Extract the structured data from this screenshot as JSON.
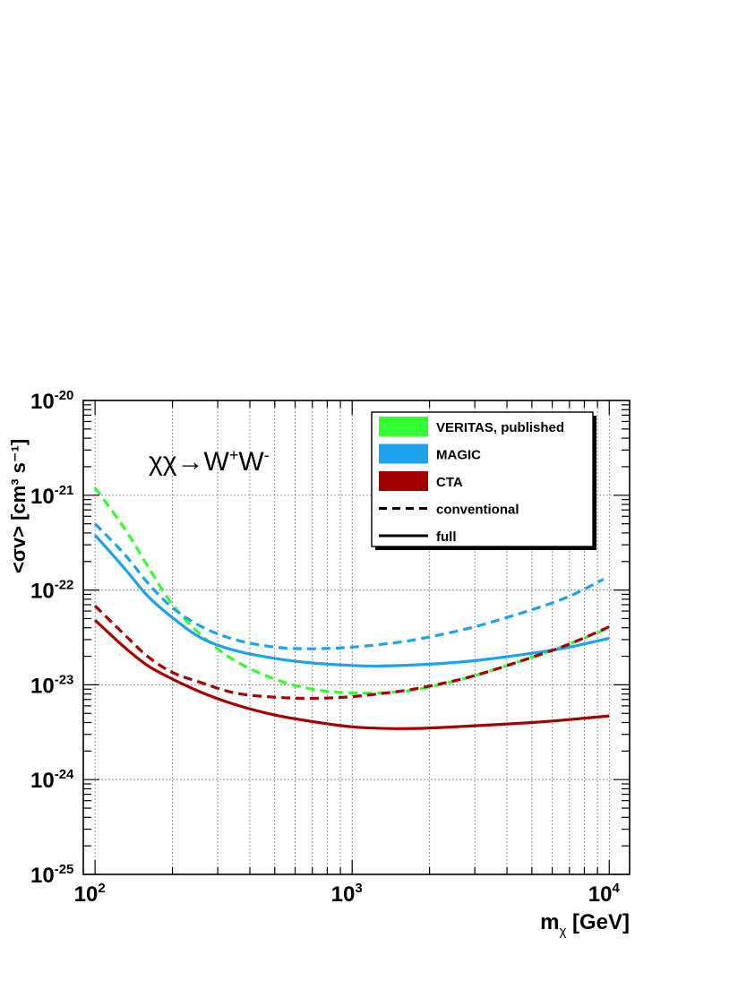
{
  "chart_data": {
    "type": "line",
    "title": "",
    "annotation": {
      "base": "χχ→W",
      "sup1": "+",
      "mid": "W",
      "sup2": "-"
    },
    "xlabel": {
      "base": "m",
      "sub": "χ",
      "rest": " [GeV]"
    },
    "ylabel": "<σv> [cm³ s⁻¹]",
    "x_scale": "log",
    "y_scale": "log",
    "xlim": [
      90,
      12000
    ],
    "ylim": [
      1e-25,
      1e-20
    ],
    "x_ticks": [
      {
        "value": 100,
        "base": "10",
        "exp": "2"
      },
      {
        "value": 1000,
        "base": "10",
        "exp": "3"
      },
      {
        "value": 10000,
        "base": "10",
        "exp": "4"
      }
    ],
    "y_ticks": [
      {
        "value": 1e-20,
        "base": "10",
        "exp": "-20"
      },
      {
        "value": 1e-21,
        "base": "10",
        "exp": "-21"
      },
      {
        "value": 1e-22,
        "base": "10",
        "exp": "-22"
      },
      {
        "value": 1e-23,
        "base": "10",
        "exp": "-23"
      },
      {
        "value": 1e-24,
        "base": "10",
        "exp": "-24"
      },
      {
        "value": 1e-25,
        "base": "10",
        "exp": "-25"
      }
    ],
    "grid": true,
    "legend_position": "top-right",
    "legend": [
      {
        "label": "VERITAS, published",
        "kind": "box",
        "color": "#33ff33"
      },
      {
        "label": "MAGIC",
        "kind": "box",
        "color": "#1ca3ec"
      },
      {
        "label": "CTA",
        "kind": "box",
        "color": "#a50000"
      },
      {
        "label": "conventional",
        "kind": "line-dashed",
        "color": "#000000"
      },
      {
        "label": "full",
        "kind": "line-solid",
        "color": "#000000"
      }
    ],
    "series": [
      {
        "name": "VERITAS, published",
        "color": "#33ff33",
        "style": "dashed",
        "x": [
          100,
          130,
          160,
          200,
          260,
          350,
          500,
          700,
          1000,
          1500,
          2000,
          3000,
          5000,
          7000,
          10000
        ],
        "y": [
          1.2e-21,
          4.5e-22,
          1.8e-22,
          7e-23,
          3.3e-23,
          1.8e-23,
          1.15e-23,
          9e-24,
          8.2e-24,
          8.4e-24,
          9.5e-24,
          1.25e-23,
          1.95e-23,
          2.7e-23,
          4e-23
        ]
      },
      {
        "name": "MAGIC",
        "color": "#1ca3ec",
        "style": "dashed",
        "x": [
          100,
          130,
          160,
          200,
          260,
          350,
          500,
          700,
          1000,
          1500,
          2000,
          3000,
          5000,
          7000,
          9500
        ],
        "y": [
          5e-22,
          2.4e-22,
          1.2e-22,
          6.5e-23,
          4.1e-23,
          3e-23,
          2.5e-23,
          2.4e-23,
          2.5e-23,
          2.8e-23,
          3.2e-23,
          4.1e-23,
          6.2e-23,
          8.6e-23,
          1.3e-22
        ]
      },
      {
        "name": "MAGIC",
        "color": "#1ca3ec",
        "style": "solid",
        "x": [
          100,
          130,
          160,
          200,
          260,
          350,
          500,
          700,
          1000,
          1300,
          2000,
          3000,
          5000,
          7000,
          10000
        ],
        "y": [
          3.8e-22,
          1.7e-22,
          8.7e-23,
          5.1e-23,
          3.1e-23,
          2.3e-23,
          1.9e-23,
          1.7e-23,
          1.6e-23,
          1.58e-23,
          1.65e-23,
          1.8e-23,
          2.15e-23,
          2.5e-23,
          3.1e-23
        ]
      },
      {
        "name": "CTA",
        "color": "#a50000",
        "style": "dashed",
        "x": [
          100,
          130,
          160,
          200,
          260,
          350,
          500,
          700,
          1000,
          1500,
          2000,
          3000,
          5000,
          7000,
          10000
        ],
        "y": [
          6.8e-23,
          3.4e-23,
          2e-23,
          1.35e-23,
          1.05e-23,
          8.2e-24,
          7.4e-24,
          7.2e-24,
          7.5e-24,
          8.5e-24,
          9.7e-24,
          1.25e-23,
          1.95e-23,
          2.7e-23,
          4.1e-23
        ]
      },
      {
        "name": "CTA",
        "color": "#a50000",
        "style": "solid",
        "x": [
          100,
          130,
          160,
          200,
          260,
          350,
          500,
          700,
          1000,
          1500,
          2000,
          3000,
          5000,
          7000,
          10000
        ],
        "y": [
          4.8e-23,
          2.5e-23,
          1.6e-23,
          1.15e-23,
          8.3e-24,
          6.2e-24,
          4.8e-24,
          4.1e-24,
          3.6e-24,
          3.45e-24,
          3.5e-24,
          3.7e-24,
          4e-24,
          4.3e-24,
          4.7e-24
        ]
      }
    ]
  }
}
